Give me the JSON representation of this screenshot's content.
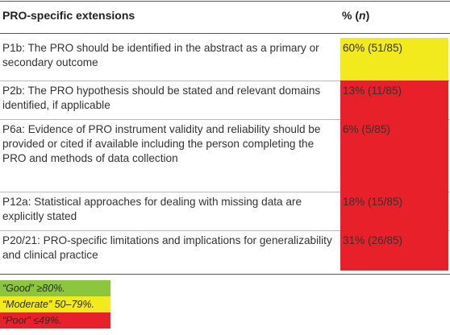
{
  "header": {
    "col1": "PRO-specific extensions",
    "col2": [
      "% (",
      "n",
      ")"
    ]
  },
  "table": {
    "rows": [
      [
        "P1b: The PRO should be identified in the abstract as a primary or secondary outcome",
        "60% (51/85)"
      ],
      [
        "P2b: The PRO hypothesis should be stated and relevant domains identified, if applicable",
        "13% (11/85)"
      ],
      [
        "P6a: Evidence of PRO instrument validity and reliability should be provided or cited if available including the person completing the PRO and methods of data collection",
        "6% (5/85)"
      ],
      [
        "P12a: Statistical approaches for dealing with missing data are explicitly stated",
        "18% (15/85)"
      ],
      [
        "P20/21: PRO-specific limitations and implications for generalizability and clinical practice",
        "31% (26/85)"
      ]
    ]
  },
  "legend": [
    "“Good” ≥80%.",
    "“Moderate” 50–79%.",
    "“Poor” ≤49%."
  ]
}
